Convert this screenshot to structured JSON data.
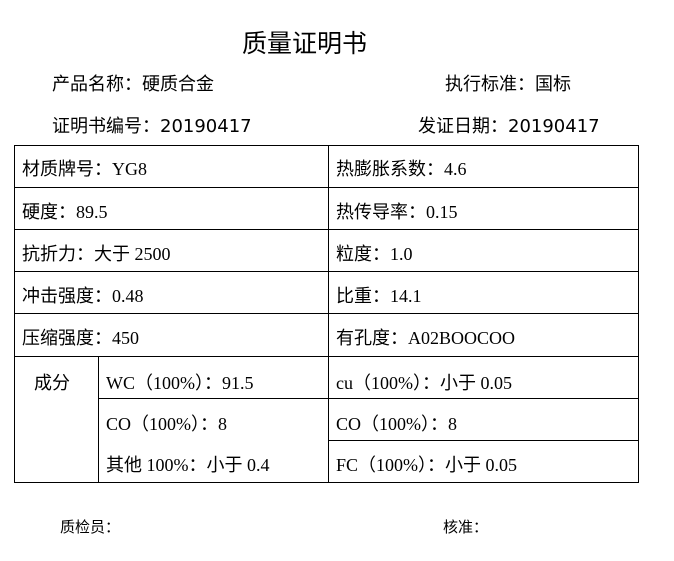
{
  "title": "质量证明书",
  "header": {
    "product_name": "产品名称：硬质合金",
    "standard": "执行标准：国标",
    "cert_no": "证明书编号：20190417",
    "issue_date": "发证日期：20190417"
  },
  "table": {
    "rows": [
      [
        "材质牌号：YG8",
        "热膨胀系数：4.6"
      ],
      [
        "硬度：89.5",
        "热传导率：0.15"
      ],
      [
        "抗折力：大于 2500",
        "粒度：1.0"
      ],
      [
        "冲击强度：0.48",
        "比重：14.1"
      ],
      [
        "压缩强度：450",
        "有孔度：A02BOOCOO"
      ]
    ],
    "composition_label": "成分",
    "composition_left": [
      "WC（100%）：91.5",
      "CO（100%）：8",
      "其他 100%：小于 0.4"
    ],
    "composition_right": [
      "cu（100%）：小于 0.05",
      "CO（100%）：8",
      "FC（100%）：小于 0.05"
    ]
  },
  "footer": {
    "inspector": "质检员：",
    "approver": "核准："
  }
}
